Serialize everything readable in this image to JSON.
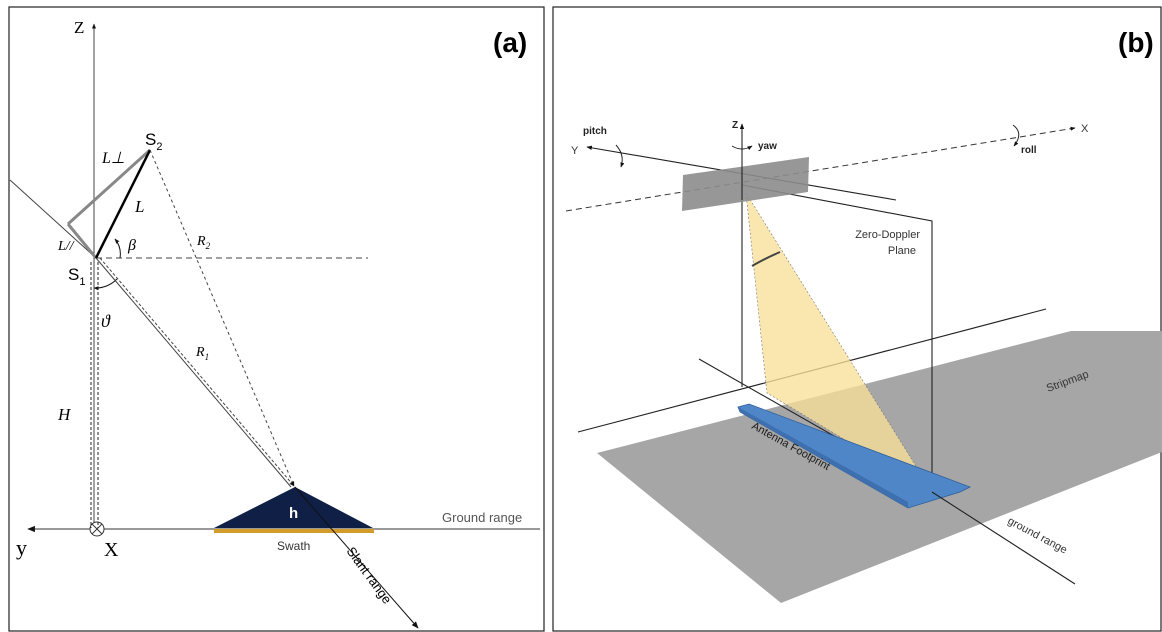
{
  "panel_a": {
    "tag": "(a)",
    "axis_z": "Z",
    "axis_y": "y",
    "axis_x": "X",
    "s2_base": "S",
    "s2_sub": "2",
    "s1_base": "S",
    "s1_sub": "1",
    "l_perp": "L⊥",
    "l": "L",
    "l_par": "L//",
    "beta": "β",
    "r2_base": "R",
    "r2_sub": "2",
    "theta": "ϑ",
    "r1_base": "R",
    "r1_sub": "1",
    "h_height": "H",
    "target_h": "h",
    "ground_range": "Ground range",
    "swath": "Swath",
    "slant_range": "Slant range",
    "colors": {
      "target": "#0f1f45",
      "swath": "#d49a2a"
    }
  },
  "panel_b": {
    "tag": "(b)",
    "axis_z": "Z",
    "axis_y": "Y",
    "axis_x": "X",
    "pitch": "pitch",
    "yaw": "yaw",
    "roll": "roll",
    "zero_doppler_1": "Zero-Doppler",
    "zero_doppler_2": "Plane",
    "stripmap": "Stripmap",
    "antenna_footprint": "Antenna Footprint",
    "ground_range": "ground range",
    "colors": {
      "beam": "#f8e09a",
      "footprint": "#4f86c8",
      "ground": "#a6a6a6",
      "satellite": "#8c8c8c"
    }
  }
}
